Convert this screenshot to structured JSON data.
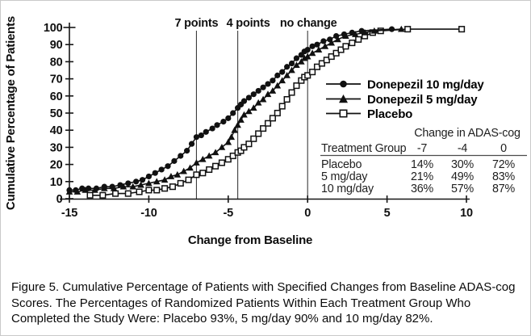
{
  "figure": {
    "caption": "Figure 5. Cumulative Percentage of Patients with Specified Changes from Baseline ADAS-cog Scores. The Percentages of Randomized Patients Within Each Treatment Group Who Completed the Study Were: Placebo 93%, 5 mg/day 90% and 10 mg/day 82%."
  },
  "chart_data": {
    "type": "line",
    "title": "",
    "xlabel": "Change from Baseline",
    "ylabel": "Cumulative Percentage of Patients",
    "xlim": [
      -15,
      10
    ],
    "ylim": [
      0,
      100
    ],
    "grid": false,
    "legend_position": "center-right",
    "x_ticks": [
      -15,
      -10,
      -5,
      0,
      5,
      10
    ],
    "y_ticks": [
      0,
      10,
      20,
      30,
      40,
      50,
      60,
      70,
      80,
      90,
      100
    ],
    "reference_lines": [
      {
        "x": -7,
        "label": "7 points",
        "label_dx": 0
      },
      {
        "x": -4.4,
        "label": "4 points",
        "label_dx": 13
      },
      {
        "x": 0,
        "label": "no change",
        "label_dx": 1
      }
    ],
    "series": [
      {
        "name": "Donepezil 10 mg/day",
        "marker": "circle-filled",
        "color": "#111111",
        "anchors_pct": {
          "-7": 36,
          "-4": 57,
          "0": 87
        },
        "points": [
          [
            -15,
            5
          ],
          [
            -14.6,
            5
          ],
          [
            -14.2,
            6
          ],
          [
            -13.8,
            6
          ],
          [
            -13.3,
            6
          ],
          [
            -12.8,
            7
          ],
          [
            -12.3,
            7
          ],
          [
            -11.8,
            8
          ],
          [
            -11.3,
            9
          ],
          [
            -10.8,
            10
          ],
          [
            -10.4,
            11
          ],
          [
            -10,
            13
          ],
          [
            -9.6,
            15
          ],
          [
            -9.2,
            17
          ],
          [
            -8.8,
            19
          ],
          [
            -8.4,
            22
          ],
          [
            -8,
            25
          ],
          [
            -7.6,
            28
          ],
          [
            -7.3,
            32
          ],
          [
            -7,
            36
          ],
          [
            -6.7,
            37
          ],
          [
            -6.4,
            39
          ],
          [
            -6,
            41
          ],
          [
            -5.7,
            43
          ],
          [
            -5.3,
            45
          ],
          [
            -5,
            47
          ],
          [
            -4.7,
            50
          ],
          [
            -4.4,
            53
          ],
          [
            -4.2,
            55
          ],
          [
            -4,
            57
          ],
          [
            -3.7,
            59
          ],
          [
            -3.4,
            61
          ],
          [
            -3.1,
            63
          ],
          [
            -2.8,
            65
          ],
          [
            -2.5,
            67
          ],
          [
            -2.2,
            69
          ],
          [
            -1.9,
            72
          ],
          [
            -1.6,
            74
          ],
          [
            -1.3,
            77
          ],
          [
            -1,
            79
          ],
          [
            -0.7,
            82
          ],
          [
            -0.4,
            84
          ],
          [
            -0.2,
            86
          ],
          [
            0,
            87
          ],
          [
            0.3,
            89
          ],
          [
            0.6,
            90
          ],
          [
            1,
            92
          ],
          [
            1.4,
            93
          ],
          [
            1.8,
            95
          ],
          [
            2.3,
            96
          ],
          [
            2.8,
            97
          ],
          [
            3.4,
            98
          ],
          [
            5.3,
            99
          ]
        ]
      },
      {
        "name": "Donepezil 5 mg/day",
        "marker": "triangle-filled",
        "color": "#111111",
        "anchors_pct": {
          "-7": 21,
          "-4": 49,
          "0": 83
        },
        "points": [
          [
            -15,
            4
          ],
          [
            -14.5,
            4
          ],
          [
            -14,
            5
          ],
          [
            -13.4,
            5
          ],
          [
            -12.8,
            6
          ],
          [
            -12.2,
            6
          ],
          [
            -11.6,
            7
          ],
          [
            -11,
            7
          ],
          [
            -10.5,
            8
          ],
          [
            -10,
            9
          ],
          [
            -9.5,
            10
          ],
          [
            -9,
            11
          ],
          [
            -8.6,
            13
          ],
          [
            -8.2,
            14
          ],
          [
            -7.8,
            16
          ],
          [
            -7.4,
            18
          ],
          [
            -7,
            21
          ],
          [
            -6.6,
            23
          ],
          [
            -6.2,
            25
          ],
          [
            -5.8,
            27
          ],
          [
            -5.4,
            30
          ],
          [
            -5,
            33
          ],
          [
            -4.8,
            36
          ],
          [
            -4.6,
            40
          ],
          [
            -4.4,
            43
          ],
          [
            -4.2,
            46
          ],
          [
            -4,
            49
          ],
          [
            -3.7,
            51
          ],
          [
            -3.4,
            53
          ],
          [
            -3.1,
            56
          ],
          [
            -2.8,
            58
          ],
          [
            -2.5,
            61
          ],
          [
            -2.2,
            63
          ],
          [
            -1.9,
            66
          ],
          [
            -1.6,
            69
          ],
          [
            -1.3,
            72
          ],
          [
            -1,
            75
          ],
          [
            -0.7,
            78
          ],
          [
            -0.4,
            80
          ],
          [
            -0.2,
            82
          ],
          [
            0,
            83
          ],
          [
            0.3,
            85
          ],
          [
            0.7,
            87
          ],
          [
            1.1,
            89
          ],
          [
            1.5,
            91
          ],
          [
            1.9,
            93
          ],
          [
            2.4,
            95
          ],
          [
            3,
            96
          ],
          [
            3.6,
            97
          ],
          [
            4.2,
            98
          ],
          [
            5.9,
            99
          ]
        ]
      },
      {
        "name": "Placebo",
        "marker": "square-open",
        "color": "#111111",
        "anchors_pct": {
          "-7": 14,
          "-4": 30,
          "0": 72
        },
        "points": [
          [
            -13.7,
            2
          ],
          [
            -12.9,
            2
          ],
          [
            -12.1,
            3
          ],
          [
            -11.3,
            3
          ],
          [
            -10.6,
            4
          ],
          [
            -10,
            5
          ],
          [
            -9.5,
            5
          ],
          [
            -9,
            6
          ],
          [
            -8.5,
            7
          ],
          [
            -8,
            9
          ],
          [
            -7.5,
            11
          ],
          [
            -7,
            14
          ],
          [
            -6.6,
            15
          ],
          [
            -6.2,
            17
          ],
          [
            -5.8,
            19
          ],
          [
            -5.4,
            21
          ],
          [
            -5,
            23
          ],
          [
            -4.7,
            25
          ],
          [
            -4.4,
            27
          ],
          [
            -4.2,
            28
          ],
          [
            -4,
            30
          ],
          [
            -3.7,
            32
          ],
          [
            -3.4,
            35
          ],
          [
            -3.1,
            38
          ],
          [
            -2.8,
            41
          ],
          [
            -2.5,
            44
          ],
          [
            -2.2,
            47
          ],
          [
            -1.9,
            50
          ],
          [
            -1.6,
            54
          ],
          [
            -1.3,
            58
          ],
          [
            -1,
            62
          ],
          [
            -0.7,
            66
          ],
          [
            -0.4,
            69
          ],
          [
            -0.2,
            71
          ],
          [
            0,
            72
          ],
          [
            0.3,
            74
          ],
          [
            0.6,
            77
          ],
          [
            0.9,
            79
          ],
          [
            1.2,
            81
          ],
          [
            1.5,
            83
          ],
          [
            1.8,
            85
          ],
          [
            2.1,
            87
          ],
          [
            2.4,
            89
          ],
          [
            2.8,
            91
          ],
          [
            3.2,
            93
          ],
          [
            3.6,
            95
          ],
          [
            4.1,
            97
          ],
          [
            4.6,
            98
          ],
          [
            6.3,
            99
          ],
          [
            9.7,
            99
          ]
        ]
      }
    ],
    "inset_table": {
      "title": "Change in ADAS-cog",
      "col_header": [
        "Treatment Group",
        "-7",
        "-4",
        "0"
      ],
      "rows": [
        {
          "label": "Placebo",
          "values": [
            "14%",
            "30%",
            "72%"
          ]
        },
        {
          "label": "5 mg/day",
          "values": [
            "21%",
            "49%",
            "83%"
          ]
        },
        {
          "label": "10 mg/day",
          "values": [
            "36%",
            "57%",
            "87%"
          ]
        }
      ]
    }
  }
}
